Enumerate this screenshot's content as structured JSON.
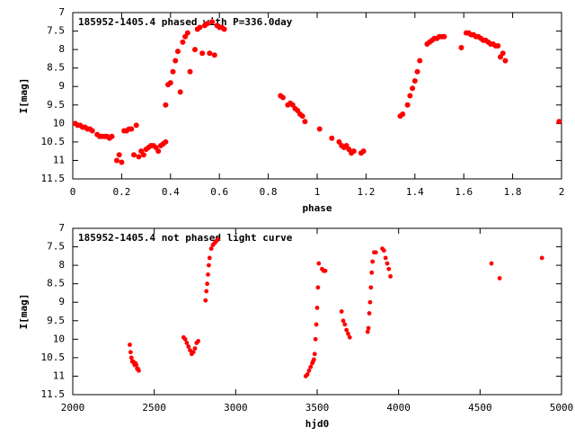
{
  "chart_data": [
    {
      "type": "scatter",
      "title": "185952-1405.4 phased with P=336.0day",
      "xlabel": "phase",
      "ylabel": "I[mag]",
      "xlim": [
        0,
        2
      ],
      "ylim": [
        11.5,
        7
      ],
      "y_reversed": true,
      "xticks": [
        "0",
        "0.2",
        "0.4",
        "0.6",
        "0.8",
        "1",
        "1.2",
        "1.4",
        "1.6",
        "1.8",
        "2"
      ],
      "yticks": [
        "7",
        "7.5",
        "8",
        "8.5",
        "9",
        "9.5",
        "10",
        "10.5",
        "11",
        "11.5"
      ],
      "marker_color": "#ff0000",
      "marker": "filled-circle",
      "grid": false,
      "series": [
        {
          "x": [
            0.01,
            0.02,
            0.03,
            0.04,
            0.05,
            0.06,
            0.07,
            0.08,
            0.1,
            0.11,
            0.12,
            0.13,
            0.14,
            0.15,
            0.16,
            0.18,
            0.19,
            0.2,
            0.21,
            0.22,
            0.23,
            0.24,
            0.25,
            0.26,
            0.27,
            0.28,
            0.29,
            0.3,
            0.31,
            0.32,
            0.33,
            0.34,
            0.35,
            0.36,
            0.37,
            0.38,
            0.38,
            0.39,
            0.4,
            0.41,
            0.42,
            0.43,
            0.44,
            0.45,
            0.46,
            0.47,
            0.48,
            0.5,
            0.51,
            0.52,
            0.53,
            0.54,
            0.55,
            0.56,
            0.57,
            0.58,
            0.59,
            0.6,
            0.61,
            0.62,
            0.85,
            0.86,
            0.88,
            0.89,
            0.9,
            0.91,
            0.92,
            0.93,
            0.94,
            0.95,
            1.01,
            1.06,
            1.09,
            1.1,
            1.11,
            1.12,
            1.13,
            1.14,
            1.15,
            1.18,
            1.19,
            1.34,
            1.35,
            1.37,
            1.38,
            1.39,
            1.4,
            1.41,
            1.42,
            1.45,
            1.46,
            1.47,
            1.48,
            1.49,
            1.5,
            1.51,
            1.52,
            1.59,
            1.61,
            1.62,
            1.63,
            1.64,
            1.65,
            1.66,
            1.67,
            1.68,
            1.69,
            1.7,
            1.71,
            1.72,
            1.73,
            1.74,
            1.75,
            1.76,
            1.77,
            1.99
          ],
          "y": [
            10.0,
            10.05,
            10.05,
            10.1,
            10.1,
            10.15,
            10.15,
            10.2,
            10.3,
            10.35,
            10.35,
            10.35,
            10.35,
            10.4,
            10.35,
            11.0,
            10.85,
            11.05,
            10.2,
            10.2,
            10.15,
            10.15,
            10.85,
            10.05,
            10.9,
            10.75,
            10.85,
            10.7,
            10.65,
            10.6,
            10.6,
            10.65,
            10.75,
            10.6,
            10.55,
            10.5,
            9.5,
            8.95,
            8.9,
            8.6,
            8.3,
            8.05,
            9.15,
            7.8,
            7.65,
            7.55,
            8.6,
            8.0,
            7.45,
            7.4,
            8.1,
            7.35,
            7.3,
            8.1,
            7.25,
            8.15,
            7.35,
            7.4,
            7.4,
            7.45,
            9.25,
            9.3,
            9.5,
            9.45,
            9.5,
            9.6,
            9.65,
            9.75,
            9.8,
            9.95,
            10.15,
            10.4,
            10.5,
            10.6,
            10.65,
            10.6,
            10.7,
            10.8,
            10.75,
            10.8,
            10.75,
            9.8,
            9.75,
            9.5,
            9.25,
            9.05,
            8.85,
            8.6,
            8.3,
            7.85,
            7.8,
            7.75,
            7.7,
            7.7,
            7.65,
            7.65,
            7.65,
            7.95,
            7.55,
            7.55,
            7.6,
            7.6,
            7.65,
            7.65,
            7.7,
            7.75,
            7.75,
            7.8,
            7.85,
            7.85,
            7.9,
            7.9,
            8.2,
            8.1,
            8.3,
            9.95
          ]
        }
      ]
    },
    {
      "type": "scatter",
      "title": "185952-1405.4 not phased light curve",
      "xlabel": "hjd0",
      "ylabel": "I[mag]",
      "xlim": [
        2000,
        5000
      ],
      "ylim": [
        11.5,
        7
      ],
      "y_reversed": true,
      "xticks": [
        "2000",
        "2500",
        "3000",
        "3500",
        "4000",
        "4500",
        "5000"
      ],
      "yticks": [
        "7",
        "7.5",
        "8",
        "8.5",
        "9",
        "9.5",
        "10",
        "10.5",
        "11",
        "11.5"
      ],
      "marker_color": "#ff0000",
      "marker": "filled-circle",
      "grid": false,
      "series": [
        {
          "x": [
            2350,
            2355,
            2360,
            2365,
            2370,
            2375,
            2380,
            2385,
            2390,
            2395,
            2400,
            2405,
            2680,
            2690,
            2700,
            2710,
            2720,
            2730,
            2740,
            2750,
            2760,
            2770,
            2815,
            2820,
            2825,
            2830,
            2835,
            2840,
            2850,
            2860,
            2870,
            2880,
            2890,
            3430,
            3440,
            3450,
            3460,
            3470,
            3475,
            3480,
            3485,
            3490,
            3495,
            3500,
            3505,
            3510,
            3530,
            3540,
            3550,
            3650,
            3660,
            3670,
            3680,
            3690,
            3700,
            3810,
            3815,
            3820,
            3825,
            3830,
            3835,
            3840,
            3850,
            3860,
            3900,
            3910,
            3920,
            3930,
            3940,
            3950,
            4570,
            4620,
            4880
          ],
          "y": [
            10.15,
            10.35,
            10.5,
            10.6,
            10.6,
            10.65,
            10.7,
            10.65,
            10.7,
            10.8,
            10.8,
            10.85,
            9.95,
            10.0,
            10.1,
            10.2,
            10.3,
            10.4,
            10.35,
            10.25,
            10.1,
            10.05,
            8.95,
            8.7,
            8.5,
            8.25,
            8.0,
            7.8,
            7.55,
            7.45,
            7.4,
            7.35,
            7.3,
            11.0,
            10.95,
            10.85,
            10.75,
            10.65,
            10.6,
            10.55,
            10.4,
            10.0,
            9.6,
            9.15,
            8.6,
            7.95,
            8.1,
            8.15,
            8.15,
            9.25,
            9.5,
            9.6,
            9.75,
            9.85,
            9.95,
            9.8,
            9.7,
            9.3,
            9.0,
            8.6,
            8.2,
            7.9,
            7.65,
            7.65,
            7.55,
            7.6,
            7.8,
            7.95,
            8.1,
            8.3,
            7.95,
            8.35,
            7.8
          ]
        }
      ]
    }
  ]
}
